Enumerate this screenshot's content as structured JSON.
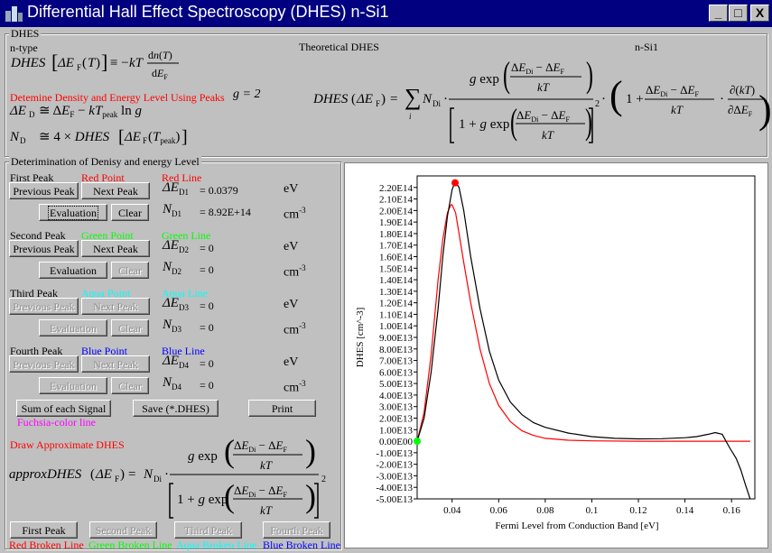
{
  "window": {
    "title": "Differential Hall Effect Spectroscopy (DHES)     n-Si1",
    "min": "_",
    "max": "□",
    "close": "X"
  },
  "top_group": {
    "legend": "DHES",
    "type_label": "n-type",
    "theory_label": "Theoretical DHES",
    "sample_label": "n-Si1",
    "red_note": "Detemine Density and Energy Level Using Peaks",
    "g_value": "g = 2"
  },
  "det_group": {
    "legend": "Deterimination of Denisy and energy Level",
    "peaks": [
      {
        "name": "First Peak",
        "point": "Red Point",
        "line": "Red Line",
        "color": "#ff0000",
        "prev": "Previous Peak",
        "next": "Next Peak",
        "eval": "Evaluation",
        "clear": "Clear",
        "dE_label": "ΔE",
        "dE_sub": "D1",
        "dE_val": "= 0.0379",
        "dE_unit": "eV",
        "N_label": "N",
        "N_sub": "D1",
        "N_val": "= 8.92E+14",
        "N_unit": "cm"
      },
      {
        "name": "Second Peak",
        "point": "Green Point",
        "line": "Green Line",
        "color": "#00ff00",
        "prev": "Previous Peak",
        "next": "Next Peak",
        "eval": "Evaluation",
        "clear": "Clear",
        "dE_label": "ΔE",
        "dE_sub": "D2",
        "dE_val": "= 0",
        "dE_unit": "eV",
        "N_label": "N",
        "N_sub": "D2",
        "N_val": "= 0",
        "N_unit": "cm"
      },
      {
        "name": "Third Peak",
        "point": "Aqua Point",
        "line": "Aqua Line",
        "color": "#00ffff",
        "prev": "Previous Peak",
        "next": "Next Peak",
        "eval": "Evaluation",
        "clear": "Clear",
        "dE_label": "ΔE",
        "dE_sub": "D3",
        "dE_val": "= 0",
        "dE_unit": "eV",
        "N_label": "N",
        "N_sub": "D3",
        "N_val": "= 0",
        "N_unit": "cm"
      },
      {
        "name": "Fourth Peak",
        "point": "Blue Point",
        "line": "Blue Line",
        "color": "#0000ff",
        "prev": "Previous Peak",
        "next": "Next Peak",
        "eval": "Evaluation",
        "clear": "Clear",
        "dE_label": "ΔE",
        "dE_sub": "D4",
        "dE_val": "= 0",
        "dE_unit": "eV",
        "N_label": "N",
        "N_sub": "D4",
        "N_val": "= 0",
        "N_unit": "cm"
      }
    ],
    "exponent": "-3",
    "sum_button": "Sum of each Signal",
    "save_button": "Save (*.DHES)",
    "print_button": "Print",
    "fuchsia_note": "Fuchsia-color line",
    "approx_title": "Draw Approximate DHES",
    "peak_buttons": [
      "First Peak",
      "Second Peak",
      "Third Peak",
      "Fourth Peak"
    ],
    "broken_lines": [
      {
        "text": "Red Broken Line",
        "color": "#ff0000"
      },
      {
        "text": "Green Broken Line",
        "color": "#00ff00"
      },
      {
        "text": "Aqua Broken Line",
        "color": "#00ffff"
      },
      {
        "text": "Blue Broken Line",
        "color": "#0000ff"
      }
    ]
  },
  "chart_data": {
    "type": "line",
    "xlabel": "Fermi Level from Conduction Band  [eV]",
    "ylabel": "DHES  [cm^-3]",
    "xlim": [
      0.025,
      0.17
    ],
    "ylim": [
      -50000000000000.0,
      230000000000000.0
    ],
    "x_ticks": [
      "0.04",
      "0.06",
      "0.08",
      "0.1",
      "0.12",
      "0.14",
      "0.16"
    ],
    "y_ticks": [
      "2.20E14",
      "2.10E14",
      "2.00E14",
      "1.90E14",
      "1.80E14",
      "1.70E14",
      "1.60E14",
      "1.50E14",
      "1.40E14",
      "1.30E14",
      "1.20E14",
      "1.10E14",
      "1.00E14",
      "9.00E13",
      "8.00E13",
      "7.00E13",
      "6.00E13",
      "5.00E13",
      "4.00E13",
      "3.00E13",
      "2.00E13",
      "1.00E13",
      "0.00E00",
      "-1.00E13",
      "-2.00E13",
      "-3.00E13",
      "-4.00E13",
      "-5.00E13"
    ],
    "series": [
      {
        "color": "#000000",
        "x": [
          0.025,
          0.028,
          0.031,
          0.034,
          0.036,
          0.038,
          0.04,
          0.0413,
          0.043,
          0.045,
          0.048,
          0.052,
          0.056,
          0.06,
          0.065,
          0.07,
          0.075,
          0.08,
          0.09,
          0.1,
          0.11,
          0.12,
          0.13,
          0.14,
          0.145,
          0.15,
          0.153,
          0.156,
          0.159,
          0.162,
          0.164,
          0.166,
          0.168
        ],
        "y": [
          0.0,
          20000000000000.0,
          60000000000000.0,
          115000000000000.0,
          160000000000000.0,
          195000000000000.0,
          218000000000000.0,
          225000000000000.0,
          220000000000000.0,
          200000000000000.0,
          160000000000000.0,
          115000000000000.0,
          78000000000000.0,
          53000000000000.0,
          34000000000000.0,
          23000000000000.0,
          16000000000000.0,
          12000000000000.0,
          7000000000000.0,
          4000000000000.0,
          2500000000000.0,
          2000000000000.0,
          2200000000000.0,
          3000000000000.0,
          4000000000000.0,
          6000000000000.0,
          7500000000000.0,
          6000000000000.0,
          -5000000000000.0,
          -15000000000000.0,
          -25000000000000.0,
          -38000000000000.0,
          -50000000000000.0
        ]
      },
      {
        "color": "#ff0000",
        "x": [
          0.025,
          0.028,
          0.031,
          0.034,
          0.036,
          0.038,
          0.0395,
          0.04,
          0.0415,
          0.043,
          0.045,
          0.048,
          0.052,
          0.056,
          0.06,
          0.065,
          0.07,
          0.075,
          0.08,
          0.09,
          0.1,
          0.12,
          0.14,
          0.16,
          0.168
        ],
        "y": [
          0.0,
          25000000000000.0,
          75000000000000.0,
          140000000000000.0,
          175000000000000.0,
          198000000000000.0,
          205000000000000.0,
          205000000000000.0,
          198000000000000.0,
          180000000000000.0,
          155000000000000.0,
          120000000000000.0,
          80000000000000.0,
          50000000000000.0,
          31000000000000.0,
          17000000000000.0,
          9000000000000.0,
          5000000000000.0,
          2500000000000.0,
          800000000000.0,
          300000000000.0,
          0,
          0,
          0,
          0
        ]
      }
    ],
    "points": [
      {
        "x": 0.025,
        "y": 0.0,
        "color": "#00ff00"
      },
      {
        "x": 0.0413,
        "y": 224000000000000.0,
        "color": "#ff0000"
      }
    ]
  }
}
